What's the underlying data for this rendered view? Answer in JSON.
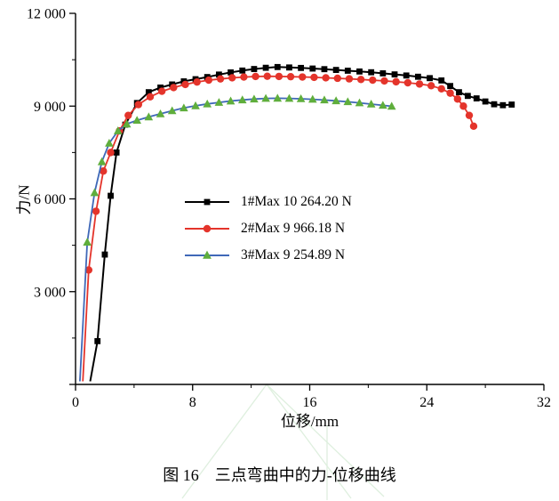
{
  "caption": "图 16　三点弯曲中的力-位移曲线",
  "chart_data": {
    "type": "line",
    "title": "",
    "xlabel": "位移/mm",
    "ylabel": "力/N",
    "xlim": [
      0,
      32
    ],
    "ylim": [
      0,
      12000
    ],
    "grid": false,
    "legend_position": "inside-center",
    "x_ticks": {
      "values": [
        0,
        8,
        16,
        24,
        32
      ],
      "labels": [
        "0",
        "8",
        "16",
        "24",
        "32"
      ]
    },
    "x_minor_ticks": [
      4,
      12,
      20,
      28
    ],
    "y_ticks": {
      "values": [
        0,
        3000,
        6000,
        9000,
        12000
      ],
      "labels": [
        "",
        "3 000",
        "6 000",
        "9 000",
        "12 000"
      ]
    },
    "y_minor_ticks": [
      1500,
      4500,
      7500,
      10500
    ],
    "series": [
      {
        "name": "1#Max 10 264.20 N",
        "max_n": 10264.2,
        "color": "#000000",
        "marker": "square",
        "marker_color": "#000000",
        "points": [
          [
            1.0,
            100
          ],
          [
            1.5,
            1400
          ],
          [
            2.0,
            4200
          ],
          [
            2.4,
            6100
          ],
          [
            2.8,
            7500
          ],
          [
            3.4,
            8400
          ],
          [
            4.2,
            9100
          ],
          [
            5.0,
            9450
          ],
          [
            5.8,
            9600
          ],
          [
            6.6,
            9700
          ],
          [
            7.4,
            9800
          ],
          [
            8.2,
            9870
          ],
          [
            9.0,
            9940
          ],
          [
            9.8,
            10020
          ],
          [
            10.6,
            10090
          ],
          [
            11.4,
            10150
          ],
          [
            12.2,
            10200
          ],
          [
            13.0,
            10240
          ],
          [
            13.8,
            10264
          ],
          [
            14.6,
            10250
          ],
          [
            15.4,
            10235
          ],
          [
            16.2,
            10215
          ],
          [
            17.0,
            10195
          ],
          [
            17.8,
            10170
          ],
          [
            18.6,
            10145
          ],
          [
            19.4,
            10120
          ],
          [
            20.2,
            10095
          ],
          [
            21.0,
            10060
          ],
          [
            21.8,
            10025
          ],
          [
            22.6,
            9990
          ],
          [
            23.4,
            9950
          ],
          [
            24.2,
            9905
          ],
          [
            25.0,
            9830
          ],
          [
            25.6,
            9650
          ],
          [
            26.2,
            9450
          ],
          [
            26.8,
            9330
          ],
          [
            27.4,
            9250
          ],
          [
            28.0,
            9150
          ],
          [
            28.6,
            9060
          ],
          [
            29.2,
            9030
          ],
          [
            29.8,
            9050
          ]
        ]
      },
      {
        "name": "2#Max 9 966.18 N",
        "max_n": 9966.18,
        "color": "#e4342b",
        "marker": "circle",
        "marker_color": "#e4342b",
        "points": [
          [
            0.5,
            100
          ],
          [
            0.9,
            3700
          ],
          [
            1.4,
            5600
          ],
          [
            1.9,
            6900
          ],
          [
            2.4,
            7500
          ],
          [
            3.0,
            8200
          ],
          [
            3.6,
            8700
          ],
          [
            4.3,
            9050
          ],
          [
            5.1,
            9300
          ],
          [
            5.9,
            9480
          ],
          [
            6.7,
            9600
          ],
          [
            7.5,
            9700
          ],
          [
            8.3,
            9780
          ],
          [
            9.1,
            9840
          ],
          [
            9.9,
            9880
          ],
          [
            10.7,
            9915
          ],
          [
            11.5,
            9940
          ],
          [
            12.3,
            9958
          ],
          [
            13.1,
            9966
          ],
          [
            13.9,
            9960
          ],
          [
            14.7,
            9952
          ],
          [
            15.5,
            9942
          ],
          [
            16.3,
            9930
          ],
          [
            17.1,
            9915
          ],
          [
            17.9,
            9900
          ],
          [
            18.7,
            9882
          ],
          [
            19.5,
            9862
          ],
          [
            20.3,
            9840
          ],
          [
            21.1,
            9815
          ],
          [
            21.9,
            9788
          ],
          [
            22.7,
            9755
          ],
          [
            23.5,
            9715
          ],
          [
            24.3,
            9660
          ],
          [
            25.0,
            9560
          ],
          [
            25.6,
            9420
          ],
          [
            26.1,
            9230
          ],
          [
            26.5,
            9000
          ],
          [
            26.9,
            8700
          ],
          [
            27.2,
            8350
          ]
        ]
      },
      {
        "name": "3#Max 9 254.89 N",
        "max_n": 9254.89,
        "color": "#3f68b8",
        "marker": "triangle",
        "marker_color": "#5fae3c",
        "points": [
          [
            0.3,
            100
          ],
          [
            0.8,
            4600
          ],
          [
            1.3,
            6200
          ],
          [
            1.8,
            7200
          ],
          [
            2.3,
            7800
          ],
          [
            2.9,
            8200
          ],
          [
            3.5,
            8420
          ],
          [
            4.2,
            8540
          ],
          [
            5.0,
            8650
          ],
          [
            5.8,
            8750
          ],
          [
            6.6,
            8850
          ],
          [
            7.4,
            8940
          ],
          [
            8.2,
            9010
          ],
          [
            9.0,
            9070
          ],
          [
            9.8,
            9120
          ],
          [
            10.6,
            9165
          ],
          [
            11.4,
            9200
          ],
          [
            12.2,
            9228
          ],
          [
            13.0,
            9248
          ],
          [
            13.8,
            9255
          ],
          [
            14.6,
            9250
          ],
          [
            15.4,
            9238
          ],
          [
            16.2,
            9220
          ],
          [
            17.0,
            9198
          ],
          [
            17.8,
            9172
          ],
          [
            18.6,
            9140
          ],
          [
            19.4,
            9105
          ],
          [
            20.2,
            9065
          ],
          [
            21.0,
            9025
          ],
          [
            21.6,
            8995
          ]
        ]
      }
    ]
  }
}
